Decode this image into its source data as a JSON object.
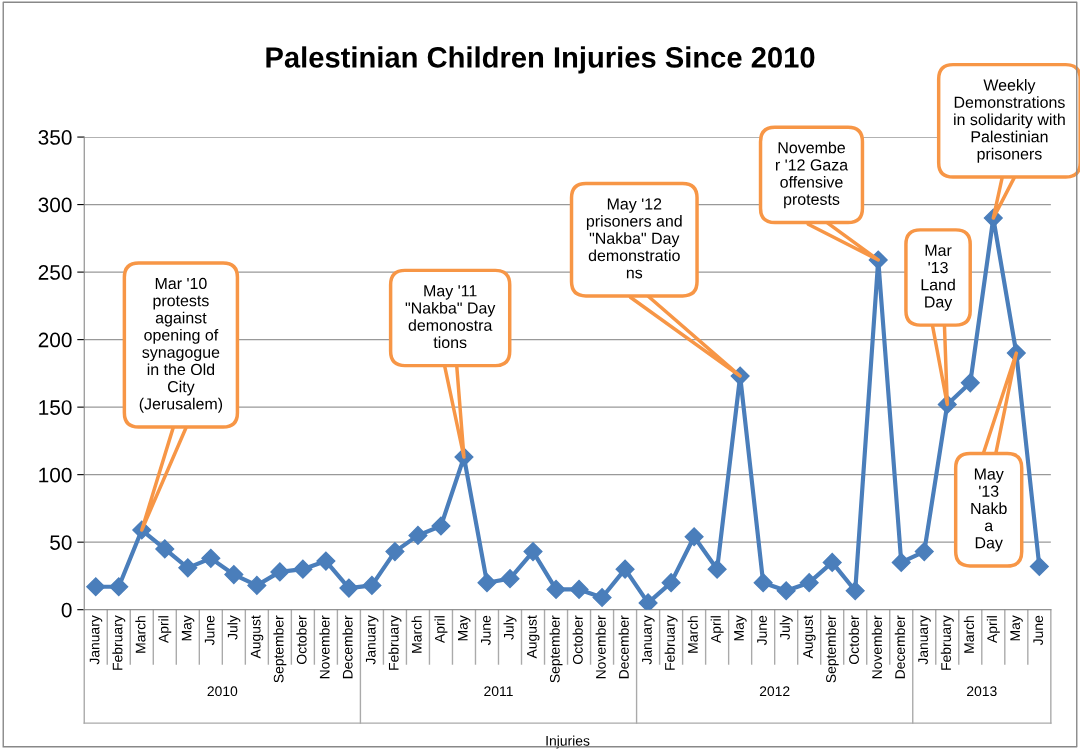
{
  "chart_data": {
    "type": "line",
    "title": "Palestinian Children Injuries Since 2010",
    "xlabel": "Injuries",
    "categories": [
      "January",
      "February",
      "March",
      "April",
      "May",
      "June",
      "July",
      "August",
      "September",
      "October",
      "November",
      "December",
      "January",
      "February",
      "March",
      "April",
      "May",
      "June",
      "July",
      "August",
      "September",
      "October",
      "November",
      "December",
      "January",
      "February",
      "March",
      "April",
      "May",
      "June",
      "July",
      "August",
      "September",
      "October",
      "November",
      "December",
      "January",
      "February",
      "March",
      "April",
      "May",
      "June"
    ],
    "series": [
      {
        "color": "#4a7ebb",
        "values": [
          17,
          17,
          59,
          45,
          31,
          38,
          26,
          18,
          28,
          30,
          36,
          16,
          18,
          43,
          55,
          62,
          113,
          20,
          23,
          43,
          15,
          15,
          9,
          30,
          5,
          20,
          54,
          30,
          173,
          20,
          14,
          20,
          35,
          14,
          259,
          35,
          43,
          152,
          168,
          290,
          190,
          32
        ]
      }
    ],
    "ylim": [
      0,
      350
    ],
    "yticks": [
      0,
      50,
      100,
      150,
      200,
      250,
      300,
      350
    ],
    "grid": "y",
    "marker": "diamond",
    "line_style": "solid",
    "annotations": [
      "2010",
      "2011",
      "2012",
      "2013",
      "Mar '10\nprotests\nagainst\nopening of\nsynagogue\nin the Old\nCity\n(Jerusalem)",
      "May '11\n\"Nakba\" Day\ndemonostra\ntions",
      "May '12\nprisoners and\n\"Nakba\" Day\ndemonstratio\nns",
      "Novembe\nr '12 Gaza\noffensive\nprotests",
      "Mar\n'13\nLand\nDay",
      "Weekly\nDemonstrations\nin solidarity with\nPalestinian\nprisoners",
      "May\n'13\nNakb\na\nDay"
    ]
  }
}
